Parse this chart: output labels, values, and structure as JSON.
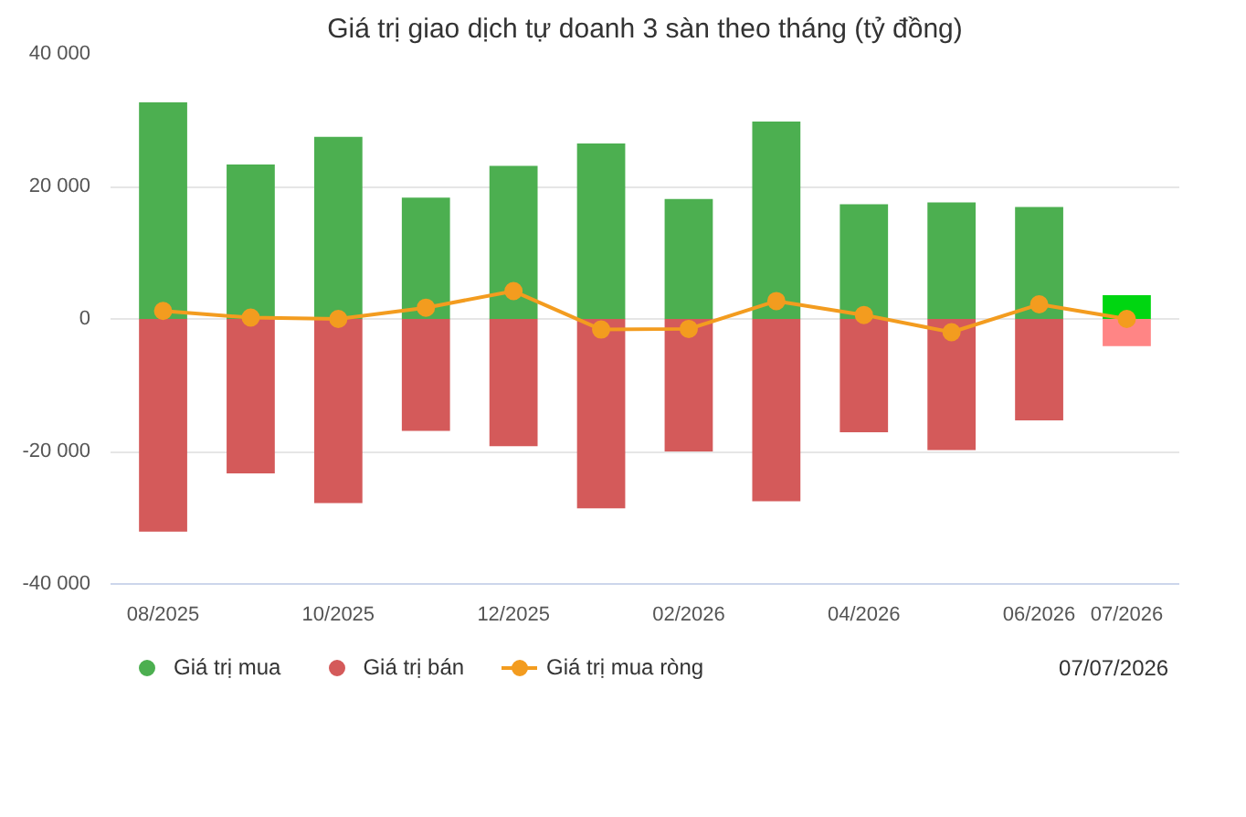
{
  "chart_data": {
    "type": "bar",
    "title": "Giá trị giao dịch tự doanh 3 sàn theo tháng (tỷ đồng)",
    "stacked": true,
    "categories": [
      "08/2025",
      null,
      "10/2025",
      null,
      "12/2025",
      null,
      "02/2026",
      null,
      "04/2026",
      null,
      "06/2026",
      "07/2026"
    ],
    "series": [
      {
        "name": "Giá trị mua",
        "color": "#4caf50",
        "colors": [
          "#4caf50",
          "#4caf50",
          "#4caf50",
          "#4caf50",
          "#4caf50",
          "#4caf50",
          "#4caf50",
          "#4caf50",
          "#4caf50",
          "#4caf50",
          "#4caf50",
          "#00d611"
        ],
        "values": [
          32700,
          23300,
          27500,
          18300,
          23100,
          26500,
          18100,
          29800,
          17300,
          17600,
          16900,
          3600
        ]
      },
      {
        "name": "Giá trị bán",
        "color": "#d45a5a",
        "colors": [
          "#d45a5a",
          "#d45a5a",
          "#d45a5a",
          "#d45a5a",
          "#d45a5a",
          "#d45a5a",
          "#d45a5a",
          "#d45a5a",
          "#d45a5a",
          "#d45a5a",
          "#d45a5a",
          "#ff8585"
        ],
        "values": [
          -32100,
          -23300,
          -27800,
          -16900,
          -19200,
          -28600,
          -20000,
          -27500,
          -17100,
          -19800,
          -15300,
          -4100
        ]
      },
      {
        "name": "Giá trị mua ròng",
        "type": "line",
        "color": "#f39c1f",
        "marker": "circle",
        "values": [
          1200,
          200,
          0,
          1700,
          4200,
          -1600,
          -1500,
          2700,
          600,
          -2000,
          2200,
          0
        ]
      }
    ],
    "ylim": [
      -40000,
      40000
    ],
    "yticks": [
      {
        "value": -40000,
        "label": "-40 000"
      },
      {
        "value": -20000,
        "label": "-20 000"
      },
      0,
      {
        "value": 20000,
        "label": "20 000"
      },
      {
        "value": 40000,
        "label": "40 000"
      }
    ],
    "grid": "y",
    "legend": "bottom",
    "annotations": [
      "07/07/2026"
    ]
  }
}
